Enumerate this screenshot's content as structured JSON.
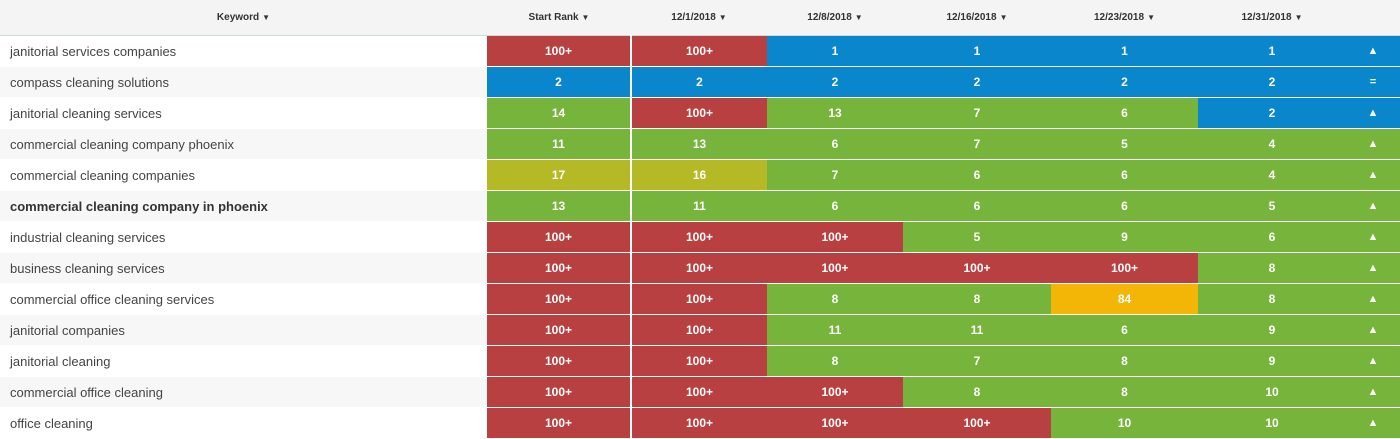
{
  "headers": {
    "keyword": "Keyword",
    "start_rank": "Start Rank",
    "dates": [
      "12/1/2018",
      "12/8/2018",
      "12/16/2018",
      "12/23/2018",
      "12/31/2018"
    ],
    "sort_glyph": "▼"
  },
  "colors": {
    "red": "#b94040",
    "blue": "#0a87cc",
    "green": "#76b43c",
    "olive": "#b6b926",
    "orange": "#f3b607"
  },
  "rows": [
    {
      "keyword": "janitorial services companies",
      "start": {
        "v": "100+",
        "c": "red"
      },
      "ranks": [
        {
          "v": "100+",
          "c": "red"
        },
        {
          "v": "1",
          "c": "blue"
        },
        {
          "v": "1",
          "c": "blue"
        },
        {
          "v": "1",
          "c": "blue"
        },
        {
          "v": "1",
          "c": "blue"
        }
      ],
      "trend": "▲",
      "trend_color": "blue"
    },
    {
      "keyword": "compass cleaning solutions",
      "start": {
        "v": "2",
        "c": "blue"
      },
      "ranks": [
        {
          "v": "2",
          "c": "blue"
        },
        {
          "v": "2",
          "c": "blue"
        },
        {
          "v": "2",
          "c": "blue"
        },
        {
          "v": "2",
          "c": "blue"
        },
        {
          "v": "2",
          "c": "blue"
        }
      ],
      "trend": "=",
      "trend_color": "blue"
    },
    {
      "keyword": "janitorial cleaning services",
      "start": {
        "v": "14",
        "c": "green"
      },
      "ranks": [
        {
          "v": "100+",
          "c": "red"
        },
        {
          "v": "13",
          "c": "green"
        },
        {
          "v": "7",
          "c": "green"
        },
        {
          "v": "6",
          "c": "green"
        },
        {
          "v": "2",
          "c": "blue"
        }
      ],
      "trend": "▲",
      "trend_color": "blue"
    },
    {
      "keyword": "commercial cleaning company phoenix",
      "start": {
        "v": "11",
        "c": "green"
      },
      "ranks": [
        {
          "v": "13",
          "c": "green"
        },
        {
          "v": "6",
          "c": "green"
        },
        {
          "v": "7",
          "c": "green"
        },
        {
          "v": "5",
          "c": "green"
        },
        {
          "v": "4",
          "c": "green"
        }
      ],
      "trend": "▲",
      "trend_color": "green"
    },
    {
      "keyword": "commercial cleaning companies",
      "start": {
        "v": "17",
        "c": "olive"
      },
      "ranks": [
        {
          "v": "16",
          "c": "olive"
        },
        {
          "v": "7",
          "c": "green"
        },
        {
          "v": "6",
          "c": "green"
        },
        {
          "v": "6",
          "c": "green"
        },
        {
          "v": "4",
          "c": "green"
        }
      ],
      "trend": "▲",
      "trend_color": "green"
    },
    {
      "keyword": "commercial cleaning company in phoenix",
      "bold": true,
      "start": {
        "v": "13",
        "c": "green"
      },
      "ranks": [
        {
          "v": "11",
          "c": "green"
        },
        {
          "v": "6",
          "c": "green"
        },
        {
          "v": "6",
          "c": "green"
        },
        {
          "v": "6",
          "c": "green"
        },
        {
          "v": "5",
          "c": "green"
        }
      ],
      "trend": "▲",
      "trend_color": "green"
    },
    {
      "keyword": "industrial cleaning services",
      "start": {
        "v": "100+",
        "c": "red"
      },
      "ranks": [
        {
          "v": "100+",
          "c": "red"
        },
        {
          "v": "100+",
          "c": "red"
        },
        {
          "v": "5",
          "c": "green"
        },
        {
          "v": "9",
          "c": "green"
        },
        {
          "v": "6",
          "c": "green"
        }
      ],
      "trend": "▲",
      "trend_color": "green"
    },
    {
      "keyword": "business cleaning services",
      "start": {
        "v": "100+",
        "c": "red"
      },
      "ranks": [
        {
          "v": "100+",
          "c": "red"
        },
        {
          "v": "100+",
          "c": "red"
        },
        {
          "v": "100+",
          "c": "red"
        },
        {
          "v": "100+",
          "c": "red"
        },
        {
          "v": "8",
          "c": "green"
        }
      ],
      "trend": "▲",
      "trend_color": "green"
    },
    {
      "keyword": "commercial office cleaning services",
      "start": {
        "v": "100+",
        "c": "red"
      },
      "ranks": [
        {
          "v": "100+",
          "c": "red"
        },
        {
          "v": "8",
          "c": "green"
        },
        {
          "v": "8",
          "c": "green"
        },
        {
          "v": "84",
          "c": "orange"
        },
        {
          "v": "8",
          "c": "green"
        }
      ],
      "trend": "▲",
      "trend_color": "green"
    },
    {
      "keyword": "janitorial companies",
      "start": {
        "v": "100+",
        "c": "red"
      },
      "ranks": [
        {
          "v": "100+",
          "c": "red"
        },
        {
          "v": "11",
          "c": "green"
        },
        {
          "v": "11",
          "c": "green"
        },
        {
          "v": "6",
          "c": "green"
        },
        {
          "v": "9",
          "c": "green"
        }
      ],
      "trend": "▲",
      "trend_color": "green"
    },
    {
      "keyword": "janitorial cleaning",
      "start": {
        "v": "100+",
        "c": "red"
      },
      "ranks": [
        {
          "v": "100+",
          "c": "red"
        },
        {
          "v": "8",
          "c": "green"
        },
        {
          "v": "7",
          "c": "green"
        },
        {
          "v": "8",
          "c": "green"
        },
        {
          "v": "9",
          "c": "green"
        }
      ],
      "trend": "▲",
      "trend_color": "green"
    },
    {
      "keyword": "commercial office cleaning",
      "start": {
        "v": "100+",
        "c": "red"
      },
      "ranks": [
        {
          "v": "100+",
          "c": "red"
        },
        {
          "v": "100+",
          "c": "red"
        },
        {
          "v": "8",
          "c": "green"
        },
        {
          "v": "8",
          "c": "green"
        },
        {
          "v": "10",
          "c": "green"
        }
      ],
      "trend": "▲",
      "trend_color": "green"
    },
    {
      "keyword": "office cleaning",
      "start": {
        "v": "100+",
        "c": "red"
      },
      "ranks": [
        {
          "v": "100+",
          "c": "red"
        },
        {
          "v": "100+",
          "c": "red"
        },
        {
          "v": "100+",
          "c": "red"
        },
        {
          "v": "10",
          "c": "green"
        },
        {
          "v": "10",
          "c": "green"
        }
      ],
      "trend": "▲",
      "trend_color": "green"
    }
  ]
}
